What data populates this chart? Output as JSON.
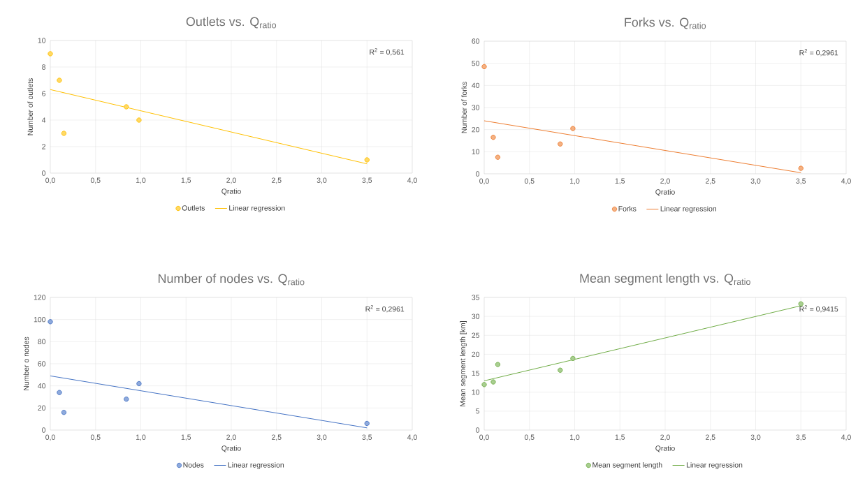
{
  "chart_data": [
    {
      "type": "scatter",
      "title": "Outlets vs. Q$_{ratio}$",
      "xlabel": "Qratio",
      "ylabel": "Number of outlets",
      "grid": true,
      "legend": "bottom",
      "xlim": [
        0,
        4
      ],
      "ylim": [
        0,
        10
      ],
      "xticks": [
        {
          "value": 0,
          "label": "0,0"
        },
        {
          "value": 0.5,
          "label": "0,5"
        },
        {
          "value": 1,
          "label": "1,0"
        },
        {
          "value": 1.5,
          "label": "1,5"
        },
        {
          "value": 2,
          "label": "2,0"
        },
        {
          "value": 2.5,
          "label": "2,5"
        },
        {
          "value": 3,
          "label": "3,0"
        },
        {
          "value": 3.5,
          "label": "3,5"
        },
        {
          "value": 4,
          "label": "4,0"
        }
      ],
      "yticks": [
        0,
        2,
        4,
        6,
        8,
        10
      ],
      "annotations": [
        "R$^{2}$ = 0,561"
      ],
      "series": [
        {
          "name": "Outlets",
          "marker": "circle",
          "color": "#ffc000",
          "x": [
            0.0,
            0.1,
            0.15,
            0.84,
            0.98,
            3.5
          ],
          "values": [
            9,
            7,
            3,
            5,
            4,
            1
          ]
        },
        {
          "name": "Linear regression",
          "type": "line",
          "color": "#ffc000",
          "x": [
            0,
            3.5
          ],
          "values": [
            6.3,
            0.7
          ]
        }
      ]
    },
    {
      "type": "scatter",
      "title": "Forks vs. Q$_{ratio}$",
      "xlabel": "Qratio",
      "ylabel": "Number of forks",
      "grid": true,
      "legend": "bottom",
      "xlim": [
        0,
        4
      ],
      "ylim": [
        0,
        60
      ],
      "xticks": [
        {
          "value": 0,
          "label": "0,0"
        },
        {
          "value": 0.5,
          "label": "0,5"
        },
        {
          "value": 1,
          "label": "1,0"
        },
        {
          "value": 1.5,
          "label": "1,5"
        },
        {
          "value": 2,
          "label": "2,0"
        },
        {
          "value": 2.5,
          "label": "2,5"
        },
        {
          "value": 3,
          "label": "3,0"
        },
        {
          "value": 3.5,
          "label": "3,5"
        },
        {
          "value": 4,
          "label": "4,0"
        }
      ],
      "yticks": [
        0,
        10,
        20,
        30,
        40,
        50,
        60
      ],
      "annotations": [
        "R$^{2}$ = 0,2961"
      ],
      "series": [
        {
          "name": "Forks",
          "marker": "circle",
          "color": "#ed7d31",
          "x": [
            0.0,
            0.1,
            0.15,
            0.84,
            0.98,
            3.5
          ],
          "values": [
            48.5,
            16.5,
            7.5,
            13.5,
            20.5,
            2.5
          ]
        },
        {
          "name": "Linear regression",
          "type": "line",
          "color": "#ed7d31",
          "x": [
            0,
            3.5
          ],
          "values": [
            24,
            0.5
          ]
        }
      ]
    },
    {
      "type": "scatter",
      "title": "Number of nodes vs. Q$_{ratio}$",
      "xlabel": "Qratio",
      "ylabel": "Number o nodes",
      "grid": true,
      "legend": "bottom",
      "xlim": [
        0,
        4
      ],
      "ylim": [
        0,
        120
      ],
      "xticks": [
        {
          "value": 0,
          "label": "0,0"
        },
        {
          "value": 0.5,
          "label": "0,5"
        },
        {
          "value": 1,
          "label": "1,0"
        },
        {
          "value": 1.5,
          "label": "1,5"
        },
        {
          "value": 2,
          "label": "2,0"
        },
        {
          "value": 2.5,
          "label": "2,5"
        },
        {
          "value": 3,
          "label": "3,0"
        },
        {
          "value": 3.5,
          "label": "3,5"
        },
        {
          "value": 4,
          "label": "4,0"
        }
      ],
      "yticks": [
        0,
        20,
        40,
        60,
        80,
        100,
        120
      ],
      "annotations": [
        "R$^{2}$ = 0,2961"
      ],
      "series": [
        {
          "name": "Nodes",
          "marker": "circle",
          "color": "#4472c4",
          "x": [
            0.0,
            0.1,
            0.15,
            0.84,
            0.98,
            3.5
          ],
          "values": [
            98,
            34,
            16,
            28,
            42,
            6
          ]
        },
        {
          "name": "Linear regression",
          "type": "line",
          "color": "#4472c4",
          "x": [
            0,
            3.5
          ],
          "values": [
            49,
            2
          ]
        }
      ]
    },
    {
      "type": "scatter",
      "title": "Mean segment length vs. Q$_{ratio}$",
      "xlabel": "Qratio",
      "ylabel": "Mean segment length [km]",
      "grid": true,
      "legend": "bottom",
      "xlim": [
        0,
        4
      ],
      "ylim": [
        0,
        35
      ],
      "xticks": [
        {
          "value": 0,
          "label": "0,0"
        },
        {
          "value": 0.5,
          "label": "0,5"
        },
        {
          "value": 1,
          "label": "1,0"
        },
        {
          "value": 1.5,
          "label": "1,5"
        },
        {
          "value": 2,
          "label": "2,0"
        },
        {
          "value": 2.5,
          "label": "2,5"
        },
        {
          "value": 3,
          "label": "3,0"
        },
        {
          "value": 3.5,
          "label": "3,5"
        },
        {
          "value": 4,
          "label": "4,0"
        }
      ],
      "yticks": [
        0,
        5,
        10,
        15,
        20,
        25,
        30,
        35
      ],
      "annotations": [
        "R$^{2}$ = 0,9415"
      ],
      "series": [
        {
          "name": "Mean segment length",
          "marker": "circle",
          "color": "#70ad47",
          "x": [
            0.0,
            0.1,
            0.15,
            0.84,
            0.98,
            3.5
          ],
          "values": [
            12,
            12.7,
            17.3,
            15.8,
            18.9,
            33.3
          ]
        },
        {
          "name": "Linear regression",
          "type": "line",
          "color": "#70ad47",
          "x": [
            0,
            3.5
          ],
          "values": [
            13,
            32.8
          ]
        }
      ]
    }
  ]
}
